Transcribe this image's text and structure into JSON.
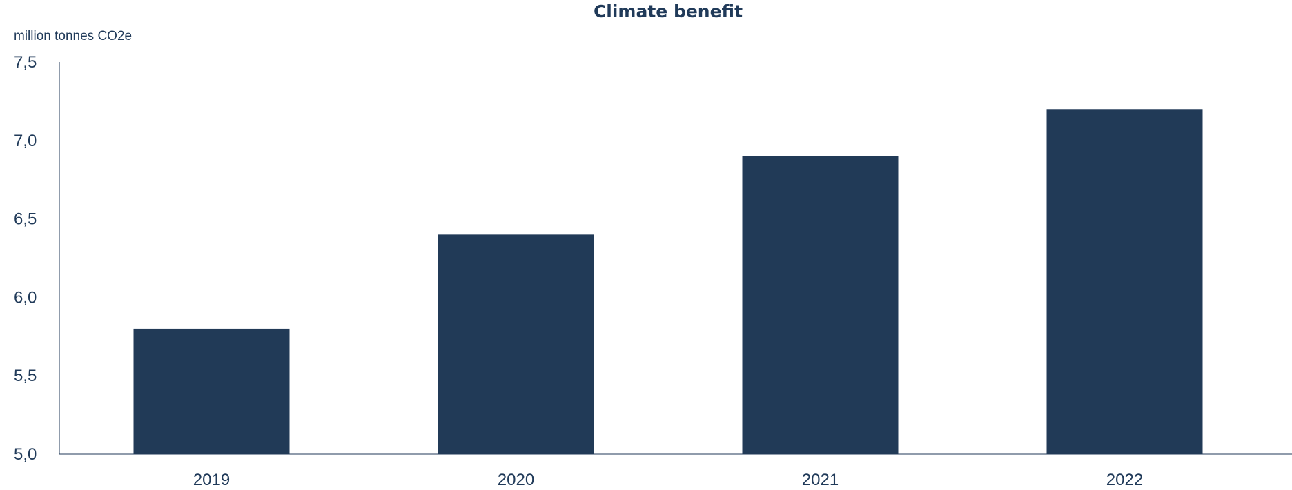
{
  "chart_data": {
    "type": "bar",
    "title": "Climate benefit",
    "ylabel": "million tonnes CO2e",
    "xlabel": "",
    "categories": [
      "2019",
      "2020",
      "2021",
      "2022"
    ],
    "values": [
      5.8,
      6.4,
      6.9,
      7.2
    ],
    "ylim": [
      5.0,
      7.5
    ],
    "yticks": [
      5.0,
      5.5,
      6.0,
      6.5,
      7.0,
      7.5
    ],
    "ytick_labels": [
      "5,0",
      "5,5",
      "6,0",
      "6,5",
      "7,0",
      "7,5"
    ],
    "grid": false,
    "legend": "none",
    "colors": {
      "bar": "#213A57",
      "axis": "#203a59",
      "text": "#203a59"
    }
  }
}
